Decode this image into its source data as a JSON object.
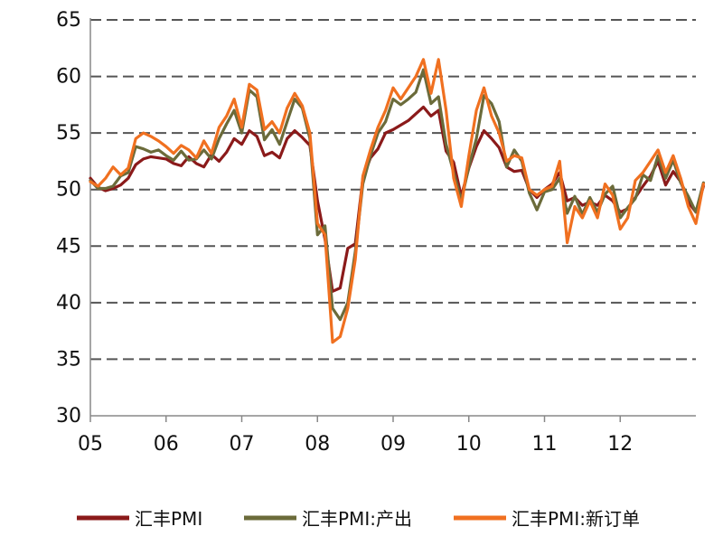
{
  "chart_data": {
    "type": "line",
    "title": "",
    "xlabel": "",
    "ylabel": "",
    "ylim": [
      30,
      65
    ],
    "yticks": [
      30,
      35,
      40,
      45,
      50,
      55,
      60,
      65
    ],
    "xlim": [
      2005,
      2013
    ],
    "xticks": [
      {
        "value": 2005,
        "label": "05"
      },
      {
        "value": 2006,
        "label": "06"
      },
      {
        "value": 2007,
        "label": "07"
      },
      {
        "value": 2008,
        "label": "08"
      },
      {
        "value": 2009,
        "label": "09"
      },
      {
        "value": 2010,
        "label": "10"
      },
      {
        "value": 2011,
        "label": "11"
      },
      {
        "value": 2012,
        "label": "12"
      }
    ],
    "grid": "horizontal dashed",
    "legend_position": "bottom",
    "series": [
      {
        "name": "汇丰PMI",
        "color": "#8b1a1a",
        "points": [
          [
            2005.0,
            51.0
          ],
          [
            2005.1,
            50.2
          ],
          [
            2005.2,
            49.9
          ],
          [
            2005.3,
            50.1
          ],
          [
            2005.4,
            50.4
          ],
          [
            2005.5,
            51.0
          ],
          [
            2005.6,
            52.2
          ],
          [
            2005.7,
            52.7
          ],
          [
            2005.8,
            52.9
          ],
          [
            2005.9,
            52.8
          ],
          [
            2006.0,
            52.7
          ],
          [
            2006.1,
            52.3
          ],
          [
            2006.2,
            52.1
          ],
          [
            2006.3,
            52.9
          ],
          [
            2006.4,
            52.3
          ],
          [
            2006.5,
            52.0
          ],
          [
            2006.6,
            53.1
          ],
          [
            2006.7,
            52.5
          ],
          [
            2006.8,
            53.3
          ],
          [
            2006.9,
            54.5
          ],
          [
            2007.0,
            54.0
          ],
          [
            2007.1,
            55.2
          ],
          [
            2007.2,
            54.7
          ],
          [
            2007.3,
            53.0
          ],
          [
            2007.4,
            53.3
          ],
          [
            2007.5,
            52.8
          ],
          [
            2007.6,
            54.5
          ],
          [
            2007.7,
            55.2
          ],
          [
            2007.8,
            54.6
          ],
          [
            2007.9,
            53.9
          ],
          [
            2008.0,
            49.0
          ],
          [
            2008.1,
            45.6
          ],
          [
            2008.2,
            41.0
          ],
          [
            2008.3,
            41.3
          ],
          [
            2008.4,
            44.8
          ],
          [
            2008.5,
            45.2
          ],
          [
            2008.6,
            51.0
          ],
          [
            2008.7,
            52.8
          ],
          [
            2008.8,
            53.6
          ],
          [
            2008.9,
            55.0
          ],
          [
            2009.0,
            55.3
          ],
          [
            2009.1,
            55.7
          ],
          [
            2009.2,
            56.1
          ],
          [
            2009.3,
            56.7
          ],
          [
            2009.4,
            57.3
          ],
          [
            2009.5,
            56.5
          ],
          [
            2009.6,
            57.0
          ],
          [
            2009.7,
            53.4
          ],
          [
            2009.8,
            52.4
          ],
          [
            2009.9,
            49.4
          ],
          [
            2010.0,
            51.9
          ],
          [
            2010.1,
            53.8
          ],
          [
            2010.2,
            55.2
          ],
          [
            2010.3,
            54.5
          ],
          [
            2010.4,
            53.7
          ],
          [
            2010.5,
            52.0
          ],
          [
            2010.6,
            51.6
          ],
          [
            2010.7,
            51.7
          ],
          [
            2010.8,
            50.0
          ],
          [
            2010.9,
            49.3
          ],
          [
            2011.0,
            50.0
          ],
          [
            2011.1,
            50.5
          ],
          [
            2011.2,
            51.5
          ],
          [
            2011.3,
            49.0
          ],
          [
            2011.4,
            49.3
          ],
          [
            2011.5,
            48.6
          ],
          [
            2011.6,
            48.9
          ],
          [
            2011.7,
            48.6
          ],
          [
            2011.8,
            49.5
          ],
          [
            2011.9,
            49.0
          ],
          [
            2012.0,
            48.0
          ],
          [
            2012.1,
            48.3
          ],
          [
            2012.2,
            49.3
          ],
          [
            2012.3,
            50.3
          ],
          [
            2012.4,
            51.2
          ],
          [
            2012.5,
            52.5
          ],
          [
            2012.6,
            50.4
          ],
          [
            2012.7,
            51.6
          ],
          [
            2012.8,
            50.7
          ],
          [
            2012.9,
            48.9
          ],
          [
            2013.0,
            48.0
          ],
          [
            2013.1,
            50.3
          ]
        ]
      },
      {
        "name": "汇丰PMI:产出",
        "color": "#6b6b3a",
        "points": [
          [
            2005.0,
            50.8
          ],
          [
            2005.1,
            50.1
          ],
          [
            2005.2,
            50.1
          ],
          [
            2005.3,
            50.3
          ],
          [
            2005.4,
            51.2
          ],
          [
            2005.5,
            51.5
          ],
          [
            2005.6,
            53.8
          ],
          [
            2005.7,
            53.6
          ],
          [
            2005.8,
            53.3
          ],
          [
            2005.9,
            53.5
          ],
          [
            2006.0,
            53.0
          ],
          [
            2006.1,
            52.6
          ],
          [
            2006.2,
            53.4
          ],
          [
            2006.3,
            52.6
          ],
          [
            2006.4,
            52.7
          ],
          [
            2006.5,
            53.5
          ],
          [
            2006.6,
            52.7
          ],
          [
            2006.7,
            54.5
          ],
          [
            2006.8,
            55.8
          ],
          [
            2006.9,
            57.0
          ],
          [
            2007.0,
            55.0
          ],
          [
            2007.1,
            58.8
          ],
          [
            2007.2,
            58.2
          ],
          [
            2007.3,
            54.4
          ],
          [
            2007.4,
            55.3
          ],
          [
            2007.5,
            54.0
          ],
          [
            2007.6,
            56.0
          ],
          [
            2007.7,
            58.0
          ],
          [
            2007.8,
            57.2
          ],
          [
            2007.9,
            54.5
          ],
          [
            2008.0,
            46.0
          ],
          [
            2008.1,
            46.8
          ],
          [
            2008.2,
            39.5
          ],
          [
            2008.3,
            38.5
          ],
          [
            2008.4,
            40.0
          ],
          [
            2008.5,
            44.5
          ],
          [
            2008.6,
            50.5
          ],
          [
            2008.7,
            53.0
          ],
          [
            2008.8,
            55.0
          ],
          [
            2008.9,
            56.0
          ],
          [
            2009.0,
            58.0
          ],
          [
            2009.1,
            57.5
          ],
          [
            2009.2,
            58.0
          ],
          [
            2009.3,
            58.6
          ],
          [
            2009.4,
            60.6
          ],
          [
            2009.5,
            57.6
          ],
          [
            2009.6,
            58.2
          ],
          [
            2009.7,
            54.0
          ],
          [
            2009.8,
            51.5
          ],
          [
            2009.9,
            49.0
          ],
          [
            2010.0,
            52.0
          ],
          [
            2010.1,
            54.5
          ],
          [
            2010.2,
            58.3
          ],
          [
            2010.3,
            57.6
          ],
          [
            2010.4,
            56.0
          ],
          [
            2010.5,
            52.0
          ],
          [
            2010.6,
            53.5
          ],
          [
            2010.7,
            52.5
          ],
          [
            2010.8,
            49.7
          ],
          [
            2010.9,
            48.2
          ],
          [
            2011.0,
            49.8
          ],
          [
            2011.1,
            50.0
          ],
          [
            2011.2,
            51.0
          ],
          [
            2011.3,
            47.9
          ],
          [
            2011.4,
            49.4
          ],
          [
            2011.5,
            47.8
          ],
          [
            2011.6,
            49.3
          ],
          [
            2011.7,
            48.0
          ],
          [
            2011.8,
            49.6
          ],
          [
            2011.9,
            50.3
          ],
          [
            2012.0,
            47.5
          ],
          [
            2012.1,
            48.4
          ],
          [
            2012.2,
            49.2
          ],
          [
            2012.3,
            51.3
          ],
          [
            2012.4,
            50.8
          ],
          [
            2012.5,
            53.0
          ],
          [
            2012.6,
            51.0
          ],
          [
            2012.7,
            52.6
          ],
          [
            2012.8,
            50.6
          ],
          [
            2012.9,
            49.4
          ],
          [
            2013.0,
            48.0
          ],
          [
            2013.1,
            50.6
          ]
        ]
      },
      {
        "name": "汇丰PMI:新订单",
        "color": "#f07020",
        "points": [
          [
            2005.0,
            50.7
          ],
          [
            2005.1,
            50.3
          ],
          [
            2005.2,
            51.0
          ],
          [
            2005.3,
            52.0
          ],
          [
            2005.4,
            51.3
          ],
          [
            2005.5,
            51.9
          ],
          [
            2005.6,
            54.5
          ],
          [
            2005.7,
            55.0
          ],
          [
            2005.8,
            54.7
          ],
          [
            2005.9,
            54.3
          ],
          [
            2006.0,
            53.8
          ],
          [
            2006.1,
            53.2
          ],
          [
            2006.2,
            53.9
          ],
          [
            2006.3,
            53.5
          ],
          [
            2006.4,
            52.8
          ],
          [
            2006.5,
            54.3
          ],
          [
            2006.6,
            53.2
          ],
          [
            2006.7,
            55.5
          ],
          [
            2006.8,
            56.5
          ],
          [
            2006.9,
            58.0
          ],
          [
            2007.0,
            55.5
          ],
          [
            2007.1,
            59.3
          ],
          [
            2007.2,
            58.8
          ],
          [
            2007.3,
            55.3
          ],
          [
            2007.4,
            56.0
          ],
          [
            2007.5,
            55.0
          ],
          [
            2007.6,
            57.2
          ],
          [
            2007.7,
            58.5
          ],
          [
            2007.8,
            57.4
          ],
          [
            2007.9,
            55.0
          ],
          [
            2008.0,
            47.0
          ],
          [
            2008.1,
            46.0
          ],
          [
            2008.2,
            36.5
          ],
          [
            2008.3,
            37.0
          ],
          [
            2008.4,
            39.5
          ],
          [
            2008.5,
            43.8
          ],
          [
            2008.6,
            51.2
          ],
          [
            2008.7,
            53.5
          ],
          [
            2008.8,
            55.5
          ],
          [
            2008.9,
            57.0
          ],
          [
            2009.0,
            59.0
          ],
          [
            2009.1,
            58.0
          ],
          [
            2009.2,
            59.0
          ],
          [
            2009.3,
            60.0
          ],
          [
            2009.4,
            61.5
          ],
          [
            2009.5,
            58.5
          ],
          [
            2009.6,
            61.5
          ],
          [
            2009.7,
            57.0
          ],
          [
            2009.8,
            51.0
          ],
          [
            2009.9,
            48.5
          ],
          [
            2010.0,
            53.0
          ],
          [
            2010.1,
            57.0
          ],
          [
            2010.2,
            59.0
          ],
          [
            2010.3,
            56.5
          ],
          [
            2010.4,
            55.0
          ],
          [
            2010.5,
            52.5
          ],
          [
            2010.6,
            53.0
          ],
          [
            2010.7,
            52.8
          ],
          [
            2010.8,
            50.0
          ],
          [
            2010.9,
            49.5
          ],
          [
            2011.0,
            50.0
          ],
          [
            2011.1,
            50.3
          ],
          [
            2011.2,
            52.5
          ],
          [
            2011.3,
            45.3
          ],
          [
            2011.4,
            48.5
          ],
          [
            2011.5,
            47.5
          ],
          [
            2011.6,
            49.0
          ],
          [
            2011.7,
            47.5
          ],
          [
            2011.8,
            50.5
          ],
          [
            2011.9,
            49.5
          ],
          [
            2012.0,
            46.5
          ],
          [
            2012.1,
            47.5
          ],
          [
            2012.2,
            50.8
          ],
          [
            2012.3,
            51.5
          ],
          [
            2012.4,
            52.5
          ],
          [
            2012.5,
            53.5
          ],
          [
            2012.6,
            51.5
          ],
          [
            2012.7,
            53.0
          ],
          [
            2012.8,
            51.0
          ],
          [
            2012.9,
            48.5
          ],
          [
            2013.0,
            47.0
          ],
          [
            2013.1,
            50.5
          ]
        ]
      }
    ]
  }
}
